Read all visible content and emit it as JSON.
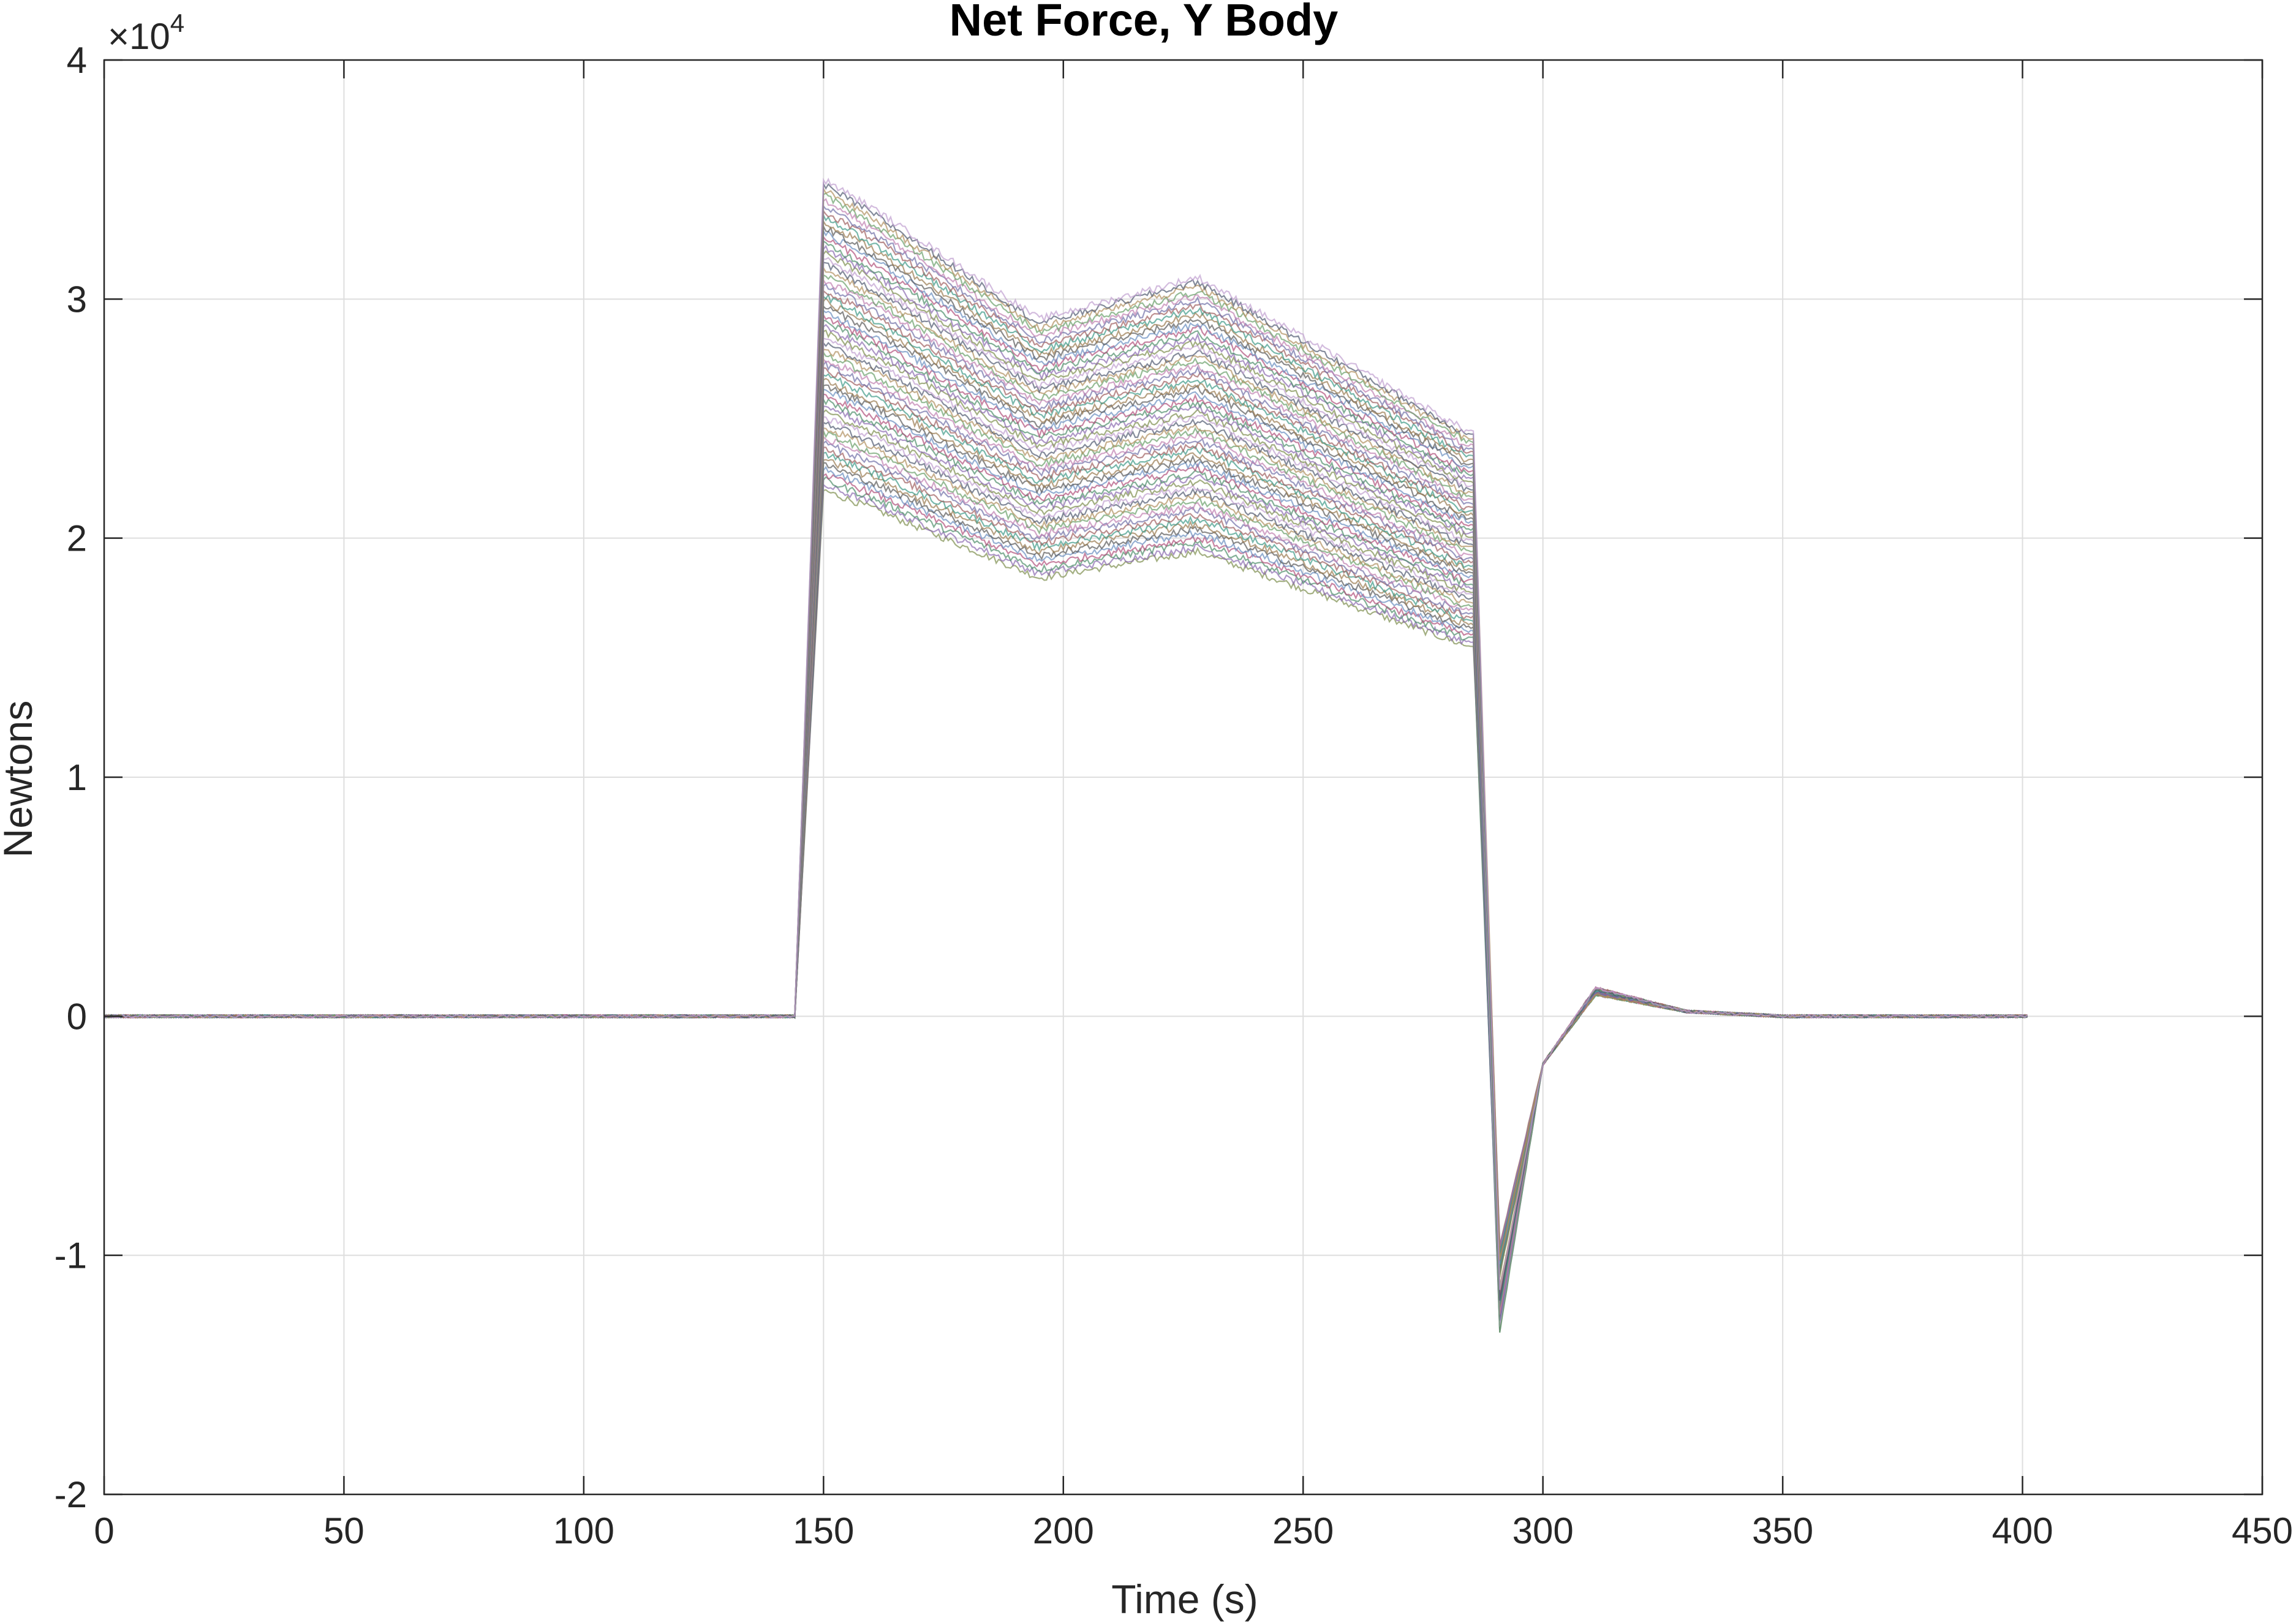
{
  "chart_data": {
    "type": "line",
    "title": "Net Force, Y Body",
    "xlabel": "Time (s)",
    "ylabel": "Newtons",
    "exponent_label": "×10",
    "exponent_power": "4",
    "xlim": [
      0,
      450
    ],
    "ylim": [
      -20000,
      40000
    ],
    "xticks": [
      0,
      50,
      100,
      150,
      200,
      250,
      300,
      350,
      400,
      450
    ],
    "xtick_labels": [
      "0",
      "50",
      "100",
      "150",
      "200",
      "250",
      "300",
      "350",
      "400",
      "450"
    ],
    "yticks": [
      -20000,
      -10000,
      0,
      10000,
      20000,
      30000,
      40000
    ],
    "ytick_labels": [
      "-2",
      "-1",
      "0",
      "1",
      "2",
      "3",
      "4"
    ],
    "grid": true,
    "legend": "none",
    "series_count": 60,
    "time_breakpoints_s": [
      0,
      144,
      150,
      160,
      195,
      228,
      284,
      285.5,
      291,
      300,
      311,
      330,
      350,
      401
    ],
    "template_shape_newtons": [
      0,
      0,
      30000,
      29000,
      25000,
      26500,
      21000,
      21000,
      -11000,
      -2000,
      1000,
      200,
      0,
      0
    ],
    "onset_peak_range_newtons": [
      22000,
      35000
    ],
    "plateau_end_range_newtons": [
      15500,
      24500
    ],
    "undershoot_min_range_newtons": [
      -13300,
      -9500
    ],
    "colors": [
      "#7e8f4e",
      "#8b6bb0",
      "#4f8f6b",
      "#b0507a",
      "#6a8fc0",
      "#5a5a5a",
      "#9a7a50",
      "#3f9a88",
      "#a06060",
      "#7070a8",
      "#c080b0",
      "#6aa06a",
      "#b09060",
      "#505a70",
      "#c0a0d0"
    ]
  }
}
